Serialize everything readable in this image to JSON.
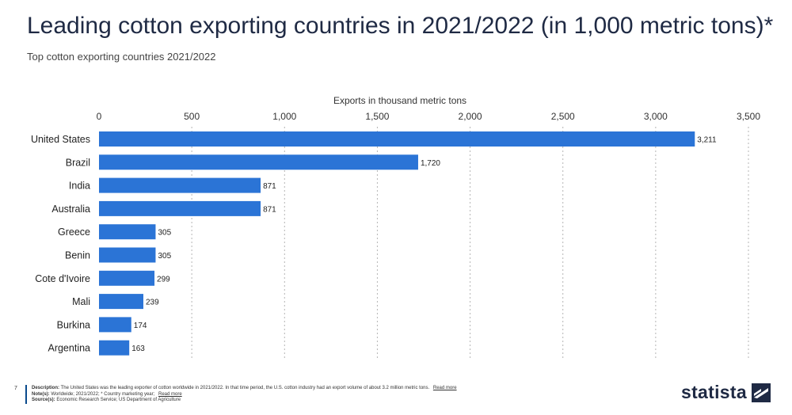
{
  "page": {
    "title": "Leading cotton exporting countries in 2021/2022 (in 1,000 metric tons)*",
    "subtitle": "Top cotton exporting countries 2021/2022",
    "page_number": "7"
  },
  "footer": {
    "description_label": "Description:",
    "description_text": "The United States was the leading exporter of cotton worldwide in 2021/2022. In that time period, the U.S. cotton industry had an export volume of about 3.2 million metric tons.",
    "description_link": "Read more",
    "notes_label": "Note(s):",
    "notes_text": "Worldwide; 2021/2022; * Country marketing year;",
    "notes_link": "Read more",
    "source_label": "Source(s):",
    "source_text": "Economic Research Service; US Department of Agriculture"
  },
  "brand": {
    "name": "statista",
    "logo_icon": "statista-logo-icon",
    "color": "#1f2a44"
  },
  "chart_data": {
    "type": "bar",
    "orientation": "horizontal",
    "xlabel": "Exports in thousand metric tons",
    "xlim": [
      0,
      3500
    ],
    "ticks": [
      0,
      500,
      1000,
      1500,
      2000,
      2500,
      3000,
      3500
    ],
    "tick_labels": [
      "0",
      "500",
      "1,000",
      "1,500",
      "2,000",
      "2,500",
      "3,000",
      "3,500"
    ],
    "categories": [
      "United States",
      "Brazil",
      "India",
      "Australia",
      "Greece",
      "Benin",
      "Cote d'Ivoire",
      "Mali",
      "Burkina",
      "Argentina"
    ],
    "values": [
      3211,
      1720,
      871,
      871,
      305,
      305,
      299,
      239,
      174,
      163
    ],
    "value_labels": [
      "3,211",
      "1,720",
      "871",
      "871",
      "305",
      "305",
      "299",
      "239",
      "174",
      "163"
    ],
    "bar_color": "#2b74d6",
    "grid": true,
    "legend": "none"
  }
}
